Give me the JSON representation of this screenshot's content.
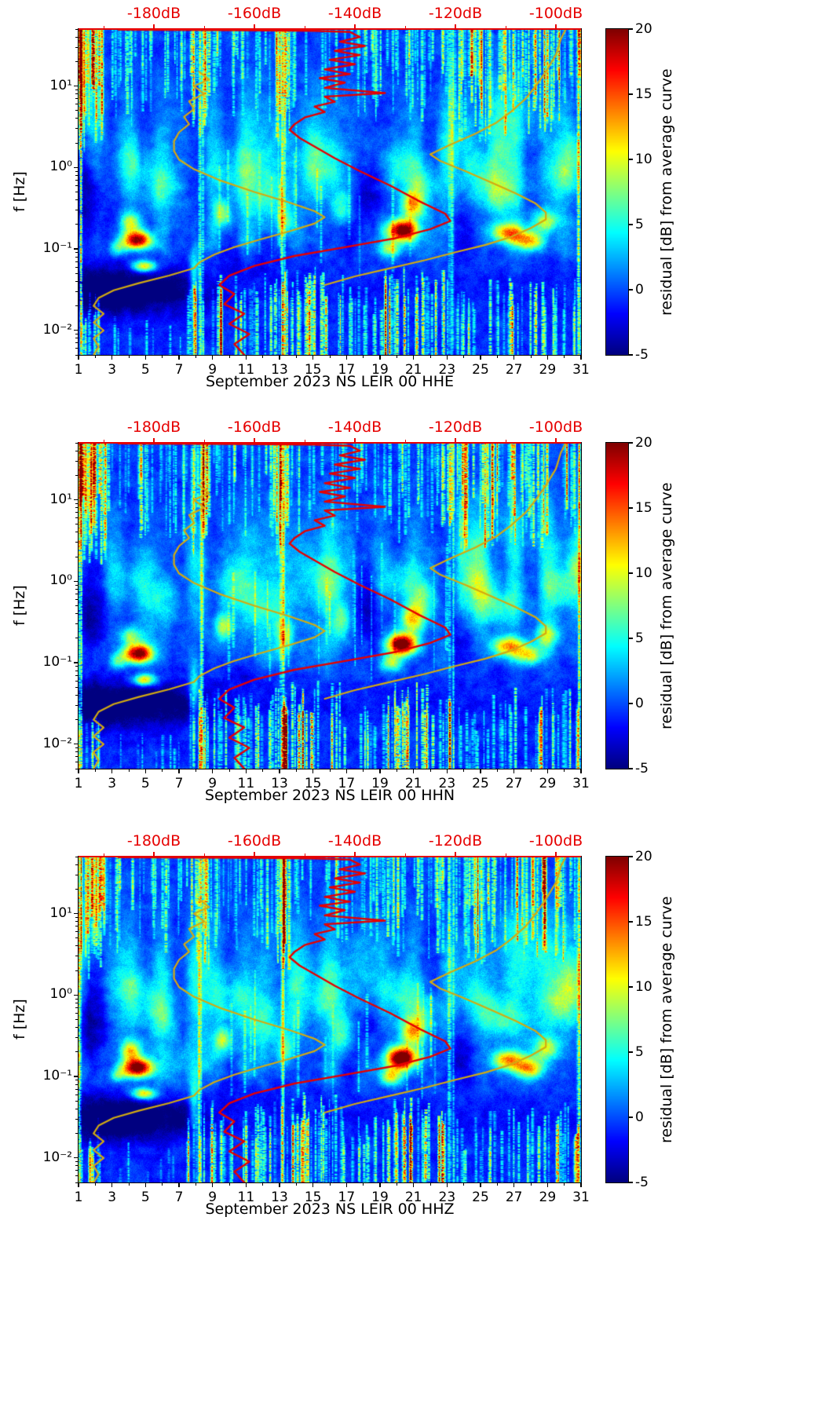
{
  "figure": {
    "background": "#ffffff",
    "kind": "three stacked residual PSD spectrogram subplots with overlay noise curves"
  },
  "chart_data": {
    "type": "heatmap",
    "title": "",
    "description": "Daily seismic power spectral density residual spectrograms for station NS LEIR 00 during September 2023, channels HHE, HHN and HHZ. Heatmap shows residual [dB] from the average curve (jet colormap, -5..20 dB). Red curve: station median PSD; yellow curves: low/high noise model references, all read against the red top dB axis (-195..-95 dB).",
    "panels": [
      {
        "channel": "HHE",
        "xlabel": "September 2023 NS LEIR 00 HHE"
      },
      {
        "channel": "HHN",
        "xlabel": "September 2023 NS LEIR 00 HHN"
      },
      {
        "channel": "HHZ",
        "xlabel": "September 2023 NS LEIR 00 HHZ"
      }
    ],
    "x_axis": {
      "range_days": [
        1,
        31
      ],
      "ticks": [
        1,
        3,
        5,
        7,
        9,
        11,
        13,
        15,
        17,
        19,
        21,
        23,
        25,
        27,
        29,
        31
      ],
      "minor_tick_step": 2
    },
    "y_axis": {
      "label": "f [Hz]",
      "scale": "log",
      "range_hz": [
        0.005,
        50
      ],
      "ticks": [
        {
          "value": 0.01,
          "label": "10⁻²"
        },
        {
          "value": 0.1,
          "label": "10⁻¹"
        },
        {
          "value": 1,
          "label": "10⁰"
        },
        {
          "value": 10,
          "label": "10¹"
        }
      ]
    },
    "top_axis": {
      "color": "#e60000",
      "range_db": [
        -195,
        -95
      ],
      "ticks": [
        {
          "value": -180,
          "label": "-180dB"
        },
        {
          "value": -160,
          "label": "-160dB"
        },
        {
          "value": -140,
          "label": "-140dB"
        },
        {
          "value": -120,
          "label": "-120dB"
        },
        {
          "value": -100,
          "label": "-100dB"
        }
      ],
      "minor_ticks": [
        -190,
        -170,
        -150,
        -130,
        -110
      ]
    },
    "colorbar": {
      "label": "residual [dB] from average curve",
      "colormap": "jet",
      "range": [
        -5,
        20
      ],
      "ticks": [
        20,
        15,
        10,
        5,
        0,
        -5
      ],
      "tick_labels": [
        "20",
        "15",
        "10",
        "5",
        "0",
        "-5"
      ]
    },
    "overlay_curves": [
      {
        "name": "station-median-psd",
        "color": "#e60000",
        "width": 2.4,
        "points_db_hz": [
          [
            -187,
            49
          ],
          [
            -162,
            48.2
          ],
          [
            -148,
            47.5
          ],
          [
            -141,
            46
          ],
          [
            -139,
            40
          ],
          [
            -143,
            35
          ],
          [
            -138,
            31
          ],
          [
            -144,
            27
          ],
          [
            -139,
            24
          ],
          [
            -145,
            21
          ],
          [
            -140,
            18.5
          ],
          [
            -146,
            16
          ],
          [
            -141,
            14
          ],
          [
            -147,
            12.5
          ],
          [
            -142,
            11
          ],
          [
            -146,
            9.5
          ],
          [
            -134,
            8.2
          ],
          [
            -146,
            7.4
          ],
          [
            -144,
            6.4
          ],
          [
            -148,
            5.6
          ],
          [
            -146,
            4.8
          ],
          [
            -150,
            4.1
          ],
          [
            -152,
            3.4
          ],
          [
            -153,
            2.9
          ],
          [
            -151,
            2.3
          ],
          [
            -148,
            1.8
          ],
          [
            -144,
            1.3
          ],
          [
            -139,
            0.9
          ],
          [
            -133,
            0.6
          ],
          [
            -127,
            0.38
          ],
          [
            -122,
            0.27
          ],
          [
            -121,
            0.22
          ],
          [
            -125,
            0.175
          ],
          [
            -132,
            0.135
          ],
          [
            -142,
            0.105
          ],
          [
            -152,
            0.082
          ],
          [
            -160,
            0.062
          ],
          [
            -165,
            0.047
          ],
          [
            -167,
            0.036
          ],
          [
            -164,
            0.028
          ],
          [
            -166,
            0.021
          ],
          [
            -162,
            0.016
          ],
          [
            -165,
            0.012
          ],
          [
            -161,
            0.009
          ],
          [
            -164,
            0.0068
          ],
          [
            -162,
            0.005
          ]
        ]
      },
      {
        "name": "noise-model-low",
        "color": "#d2aa12",
        "width": 2.2,
        "points_db_hz": [
          [
            -171,
            15
          ],
          [
            -169,
            12
          ],
          [
            -172,
            10
          ],
          [
            -170,
            8
          ],
          [
            -173,
            6.5
          ],
          [
            -172,
            5.2
          ],
          [
            -174,
            4.2
          ],
          [
            -173,
            3.4
          ],
          [
            -175,
            2.7
          ],
          [
            -176,
            2.1
          ],
          [
            -176,
            1.6
          ],
          [
            -175,
            1.25
          ],
          [
            -172,
            0.95
          ],
          [
            -167,
            0.7
          ],
          [
            -160,
            0.5
          ],
          [
            -153,
            0.37
          ],
          [
            -148,
            0.29
          ],
          [
            -146,
            0.245
          ],
          [
            -148,
            0.205
          ],
          [
            -153,
            0.165
          ],
          [
            -159,
            0.13
          ],
          [
            -164,
            0.105
          ],
          [
            -168,
            0.085
          ],
          [
            -171,
            0.068
          ],
          [
            -172,
            0.058
          ],
          [
            -177,
            0.047
          ],
          [
            -183,
            0.038
          ],
          [
            -188,
            0.031
          ],
          [
            -191,
            0.025
          ],
          [
            -192,
            0.02
          ],
          [
            -190,
            0.016
          ],
          [
            -192,
            0.0125
          ],
          [
            -190,
            0.01
          ],
          [
            -192,
            0.008
          ],
          [
            -191,
            0.0063
          ],
          [
            -192,
            0.005
          ]
        ]
      },
      {
        "name": "noise-model-high",
        "color": "#d2aa12",
        "width": 2.2,
        "points_db_hz": [
          [
            -146,
            0.036
          ],
          [
            -140,
            0.046
          ],
          [
            -133,
            0.058
          ],
          [
            -126,
            0.073
          ],
          [
            -120,
            0.091
          ],
          [
            -114,
            0.112
          ],
          [
            -109,
            0.14
          ],
          [
            -105,
            0.18
          ],
          [
            -102,
            0.23
          ],
          [
            -102,
            0.28
          ],
          [
            -104,
            0.36
          ],
          [
            -108,
            0.48
          ],
          [
            -113,
            0.66
          ],
          [
            -118,
            0.9
          ],
          [
            -123,
            1.2
          ],
          [
            -125,
            1.45
          ],
          [
            -121,
            1.9
          ],
          [
            -116,
            2.6
          ],
          [
            -112,
            3.5
          ],
          [
            -109,
            4.8
          ],
          [
            -106,
            7
          ],
          [
            -104,
            10
          ],
          [
            -102,
            15
          ],
          [
            -100,
            24
          ],
          [
            -99,
            38
          ],
          [
            -98,
            50
          ]
        ]
      }
    ],
    "heatmap": {
      "background_residual_db": -1.5,
      "noise_seed": 7,
      "features_format": [
        "day",
        "freq_hz",
        "amp_db",
        "sigma_days",
        "sigma_log10f"
      ],
      "features": [
        [
          4.5,
          0.13,
          21,
          0.85,
          0.11
        ],
        [
          4.1,
          0.21,
          9,
          0.6,
          0.12
        ],
        [
          4.9,
          0.062,
          13,
          0.7,
          0.07
        ],
        [
          3.3,
          0.105,
          7,
          0.45,
          0.09
        ],
        [
          5.9,
          0.55,
          4.5,
          1.1,
          0.28
        ],
        [
          4.3,
          1.1,
          3.5,
          1.4,
          0.3
        ],
        [
          9.6,
          0.28,
          8.5,
          0.5,
          0.16
        ],
        [
          10.3,
          0.9,
          4,
          1.2,
          0.3
        ],
        [
          12.1,
          0.45,
          4,
          1.4,
          0.3
        ],
        [
          13.3,
          0.22,
          6.5,
          0.5,
          0.18
        ],
        [
          15.6,
          1,
          3.5,
          1.4,
          0.3
        ],
        [
          16.7,
          0.32,
          6,
          0.6,
          0.22
        ],
        [
          20.3,
          0.17,
          23,
          0.85,
          0.13
        ],
        [
          20.9,
          0.35,
          11,
          0.7,
          0.16
        ],
        [
          19.6,
          0.1,
          9,
          0.6,
          0.1
        ],
        [
          21.6,
          0.6,
          5.5,
          0.8,
          0.25
        ],
        [
          20.1,
          1,
          4.5,
          1.2,
          0.28
        ],
        [
          24.9,
          0.9,
          4.5,
          1.1,
          0.28
        ],
        [
          26.6,
          0.16,
          13,
          1,
          0.12
        ],
        [
          27.9,
          0.125,
          11,
          0.9,
          0.11
        ],
        [
          28.9,
          0.22,
          9,
          0.7,
          0.14
        ],
        [
          26.1,
          0.5,
          5.5,
          1.4,
          0.24
        ],
        [
          29.9,
          0.8,
          4.5,
          1.1,
          0.26
        ],
        [
          30.6,
          1.6,
          3.5,
          0.8,
          0.3
        ],
        [
          7.9,
          0.045,
          7,
          0.3,
          0.35
        ],
        [
          1.6,
          0.4,
          -3,
          1.1,
          0.55
        ],
        [
          5,
          0.032,
          -3,
          3.2,
          0.26
        ],
        [
          2.3,
          0.03,
          -2.5,
          1.8,
          0.3
        ],
        [
          18.3,
          0.5,
          -2.8,
          1,
          0.4
        ],
        [
          23.8,
          0.16,
          -2.2,
          0.8,
          0.35
        ],
        [
          17.5,
          0.15,
          -2,
          1.2,
          0.3
        ],
        [
          11,
          0.07,
          -1.5,
          2,
          0.2
        ],
        [
          24,
          2.5,
          2.5,
          1,
          0.4
        ],
        [
          27,
          5,
          2.5,
          2,
          0.5
        ],
        [
          1.5,
          8,
          3,
          0.8,
          0.8
        ]
      ],
      "streak_groups_format": [
        "anchor",
        "day_min",
        "day_max",
        "count",
        "lf_param",
        "amp_min",
        "amp_max"
      ],
      "streak_groups": [
        [
          "t",
          1,
          2.6,
          28,
          0.2,
          4,
          14
        ],
        [
          "t",
          2.6,
          7.5,
          26,
          0.5,
          3,
          9
        ],
        [
          "t",
          7.6,
          8.8,
          16,
          0.3,
          4,
          12
        ],
        [
          "t",
          8.8,
          12.8,
          24,
          0.55,
          3,
          8
        ],
        [
          "t",
          12.8,
          13.6,
          14,
          0.25,
          4,
          12
        ],
        [
          "t",
          13.6,
          19,
          28,
          0.55,
          3,
          8
        ],
        [
          "t",
          19,
          23.5,
          28,
          0.45,
          3,
          10
        ],
        [
          "t",
          23.5,
          25.6,
          24,
          0.3,
          4,
          13
        ],
        [
          "t",
          25.6,
          31,
          52,
          0.4,
          3,
          12
        ],
        [
          "b",
          1,
          2.2,
          10,
          -1.5,
          4,
          10
        ],
        [
          "b",
          2.2,
          7.5,
          8,
          -1.75,
          3,
          7
        ],
        [
          "b",
          7.5,
          9,
          12,
          -1.25,
          4,
          12
        ],
        [
          "b",
          9,
          13,
          24,
          -1.3,
          4,
          13
        ],
        [
          "b",
          13,
          16.8,
          28,
          -1.2,
          5,
          16
        ],
        [
          "b",
          16.8,
          19.2,
          13,
          -1.45,
          4,
          10
        ],
        [
          "b",
          19.2,
          23.3,
          28,
          -1.2,
          5,
          16
        ],
        [
          "b",
          23.3,
          25.5,
          11,
          -1.5,
          4,
          9
        ],
        [
          "b",
          25.5,
          31,
          28,
          -1.3,
          4,
          12
        ],
        [
          "f",
          8.05,
          8.45,
          3,
          0,
          4,
          7
        ],
        [
          "f",
          13,
          13.35,
          3,
          0,
          4,
          7
        ],
        [
          "f",
          23.05,
          23.4,
          3,
          0,
          4,
          6
        ],
        [
          "f",
          1,
          1.2,
          2,
          0,
          8,
          14
        ],
        [
          "f",
          30.8,
          31,
          2,
          0,
          6,
          12
        ],
        [
          "m",
          9,
          23,
          18,
          -1.2,
          3,
          6
        ]
      ]
    }
  }
}
